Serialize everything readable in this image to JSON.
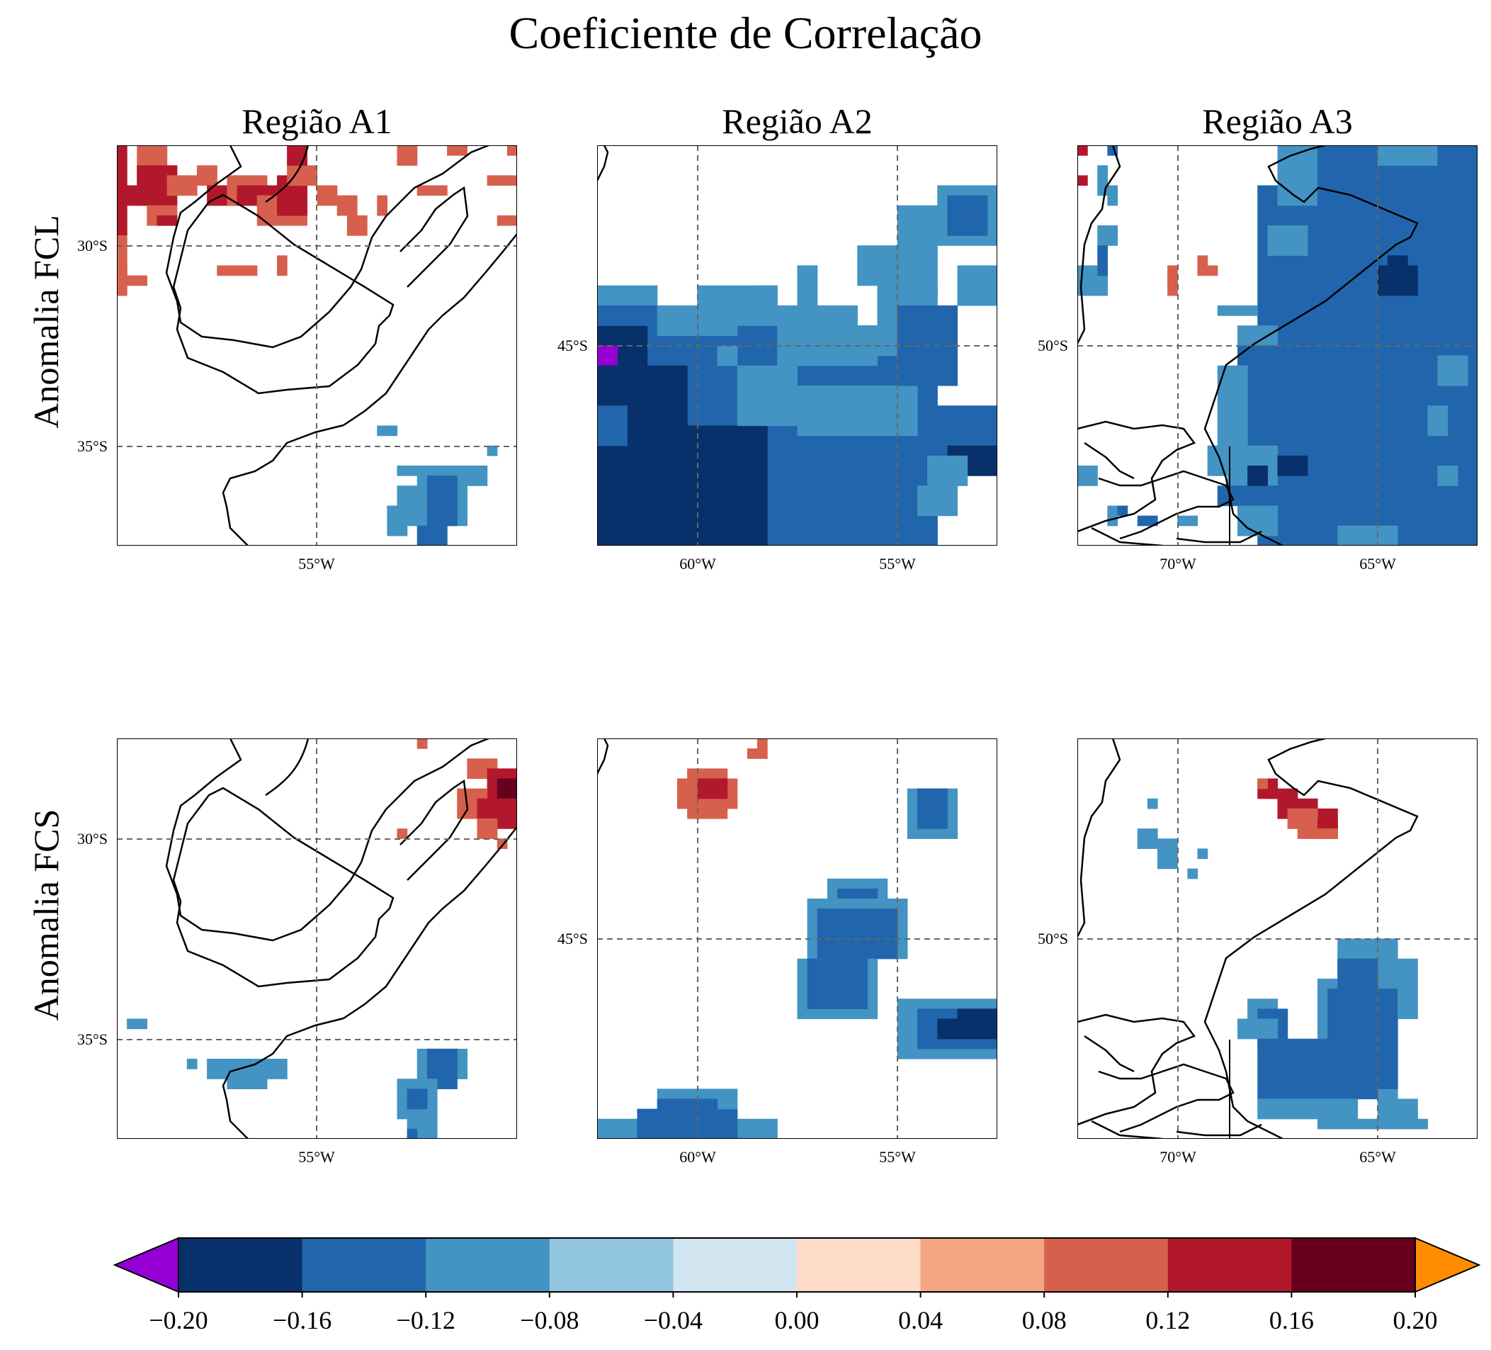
{
  "title": "Coeficiente de Correlação",
  "columns": [
    "Região A1",
    "Região A2",
    "Região A3"
  ],
  "rows": [
    "Anomalia FCL",
    "Anomalia FCS"
  ],
  "panels": [
    {
      "region": "Região A1",
      "row": "Anomalia FCL",
      "lon_labels": [
        "55°W"
      ],
      "lat_labels": [
        "30°S",
        "35°S"
      ]
    },
    {
      "region": "Região A2",
      "row": "Anomalia FCL",
      "lon_labels": [
        "60°W",
        "55°W"
      ],
      "lat_labels": [
        "45°S"
      ]
    },
    {
      "region": "Região A3",
      "row": "Anomalia FCL",
      "lon_labels": [
        "70°W",
        "65°W"
      ],
      "lat_labels": [
        "50°S"
      ]
    },
    {
      "region": "Região A1",
      "row": "Anomalia FCS",
      "lon_labels": [
        "55°W"
      ],
      "lat_labels": [
        "30°S",
        "35°S"
      ]
    },
    {
      "region": "Região A2",
      "row": "Anomalia FCS",
      "lon_labels": [
        "60°W",
        "55°W"
      ],
      "lat_labels": [
        "45°S"
      ]
    },
    {
      "region": "Região A3",
      "row": "Anomalia FCS",
      "lon_labels": [
        "70°W",
        "65°W"
      ],
      "lat_labels": [
        "50°S"
      ]
    }
  ],
  "colorbar": {
    "ticks": [
      "−0.20",
      "−0.16",
      "−0.12",
      "−0.08",
      "−0.04",
      "0.00",
      "0.04",
      "0.08",
      "0.12",
      "0.16",
      "0.20"
    ],
    "colors": [
      "#08306b",
      "#2166ac",
      "#4393c3",
      "#92c5de",
      "#d1e5f0",
      "#fddbc7",
      "#f4a582",
      "#d6604d",
      "#b2182b",
      "#67001f"
    ],
    "under_color": "#9400d3",
    "over_color": "#ff8c00"
  }
}
